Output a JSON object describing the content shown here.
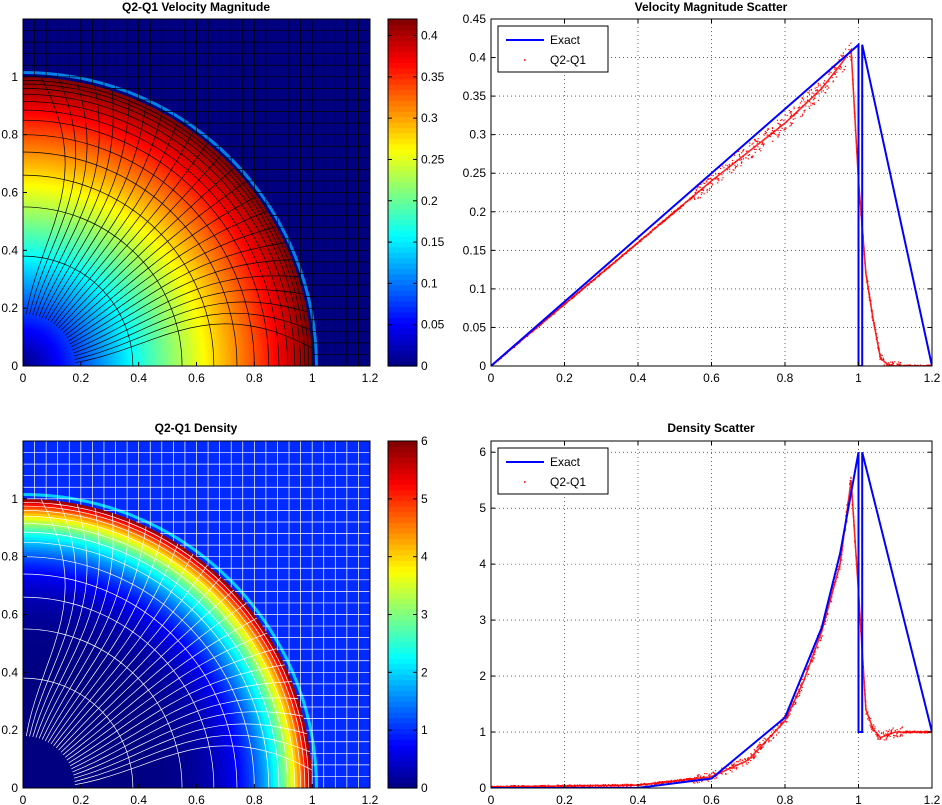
{
  "chart_data": [
    {
      "type": "heatmap",
      "title": "Q2-Q1 Velocity Magnitude",
      "xlim": [
        0,
        1.2
      ],
      "ylim": [
        0,
        1.2
      ],
      "xticks": [
        "0",
        "0.2",
        "0.4",
        "0.6",
        "0.8",
        "1",
        "1.2"
      ],
      "yticks": [
        "0",
        "0.2",
        "0.4",
        "0.6",
        "0.8",
        "1"
      ],
      "colormap": "jet",
      "clim": [
        0,
        0.42
      ],
      "colorbar_ticks": [
        "0",
        "0.05",
        "0.1",
        "0.15",
        "0.2",
        "0.25",
        "0.3",
        "0.35",
        "0.4"
      ],
      "field": "velocity magnitude = 0.42 * r for r < 1, 0 outside",
      "shock_radius": 1.0,
      "peak_value": 0.42,
      "mesh_color": "#000000"
    },
    {
      "type": "scatter",
      "title": "Velocity Magnitude Scatter",
      "xlim": [
        0,
        1.2
      ],
      "ylim": [
        0,
        0.45
      ],
      "xticks": [
        "0",
        "0.2",
        "0.4",
        "0.6",
        "0.8",
        "1",
        "1.2"
      ],
      "yticks": [
        "0",
        "0.05",
        "0.1",
        "0.15",
        "0.2",
        "0.25",
        "0.3",
        "0.35",
        "0.4",
        "0.45"
      ],
      "grid": true,
      "legend_position": "top-left",
      "series": [
        {
          "name": "Exact",
          "kind": "line",
          "color": "#0000ff",
          "x": [
            0,
            1.0,
            1.0,
            1.01,
            1.01,
            1.2
          ],
          "y": [
            0,
            0.4167,
            0,
            0,
            0.4167,
            0
          ]
        },
        {
          "name": "Q2-Q1",
          "kind": "points",
          "color": "#ff0000",
          "x": [
            0,
            0.2,
            0.4,
            0.6,
            0.8,
            0.9,
            0.95,
            0.98,
            1.0,
            1.02,
            1.04,
            1.06,
            1.08,
            1.1,
            1.2
          ],
          "y": [
            0,
            0.08,
            0.16,
            0.24,
            0.315,
            0.36,
            0.39,
            0.41,
            0.24,
            0.12,
            0.06,
            0.01,
            0.002,
            0,
            0
          ]
        }
      ]
    },
    {
      "type": "heatmap",
      "title": "Q2-Q1 Density",
      "xlim": [
        0,
        1.2
      ],
      "ylim": [
        0,
        1.2
      ],
      "xticks": [
        "0",
        "0.2",
        "0.4",
        "0.6",
        "0.8",
        "1",
        "1.2"
      ],
      "yticks": [
        "0",
        "0.2",
        "0.4",
        "0.6",
        "0.8",
        "1"
      ],
      "colormap": "jet",
      "clim": [
        0,
        6
      ],
      "colorbar_ticks": [
        "0",
        "1",
        "2",
        "3",
        "4",
        "5",
        "6"
      ],
      "field": "density = 6 * r^7 for r < 1, 1 outside",
      "shock_radius": 1.0,
      "peak_value": 6,
      "ambient_value": 1,
      "mesh_color": "#ffffff"
    },
    {
      "type": "scatter",
      "title": "Density Scatter",
      "xlim": [
        0,
        1.2
      ],
      "ylim": [
        0,
        6.2
      ],
      "xticks": [
        "0",
        "0.2",
        "0.4",
        "0.6",
        "0.8",
        "1",
        "1.2"
      ],
      "yticks": [
        "0",
        "1",
        "2",
        "3",
        "4",
        "5",
        "6"
      ],
      "grid": true,
      "legend_position": "top-left",
      "series": [
        {
          "name": "Exact",
          "kind": "line",
          "color": "#0000ff",
          "x": [
            0,
            0.4,
            0.6,
            0.8,
            0.9,
            0.95,
            1.0,
            1.0,
            1.01,
            1.01,
            1.2
          ],
          "y": [
            0,
            0.002,
            0.17,
            1.26,
            2.87,
            4.19,
            6.0,
            1.0,
            1.0,
            6.0,
            1.0
          ]
        },
        {
          "name": "Q2-Q1",
          "kind": "points",
          "color": "#ff0000",
          "x": [
            0,
            0.4,
            0.6,
            0.7,
            0.8,
            0.85,
            0.9,
            0.95,
            0.98,
            1.0,
            1.02,
            1.04,
            1.06,
            1.1,
            1.2
          ],
          "y": [
            0.02,
            0.05,
            0.2,
            0.5,
            1.2,
            1.9,
            2.8,
            4.0,
            5.5,
            3.5,
            1.4,
            1.05,
            0.9,
            1.0,
            1.0
          ]
        }
      ]
    }
  ]
}
